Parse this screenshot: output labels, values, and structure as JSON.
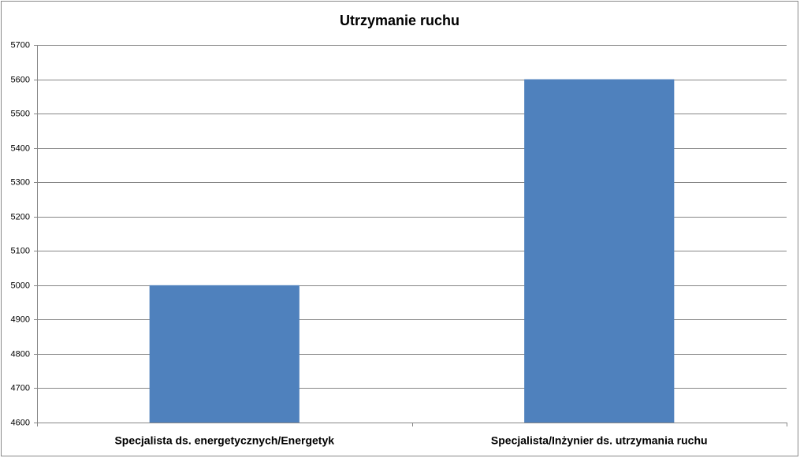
{
  "chart_data": {
    "type": "bar",
    "title": "Utrzymanie ruchu",
    "categories": [
      "Specjalista ds. energetycznych/Energetyk",
      "Specjalista/Inżynier ds. utrzymania ruchu"
    ],
    "values": [
      5000,
      5600
    ],
    "color": "#4f81bd",
    "ylim": [
      4600,
      5700
    ],
    "yticks": [
      4600,
      4700,
      4800,
      4900,
      5000,
      5100,
      5200,
      5300,
      5400,
      5500,
      5600,
      5700
    ],
    "grid": true
  }
}
